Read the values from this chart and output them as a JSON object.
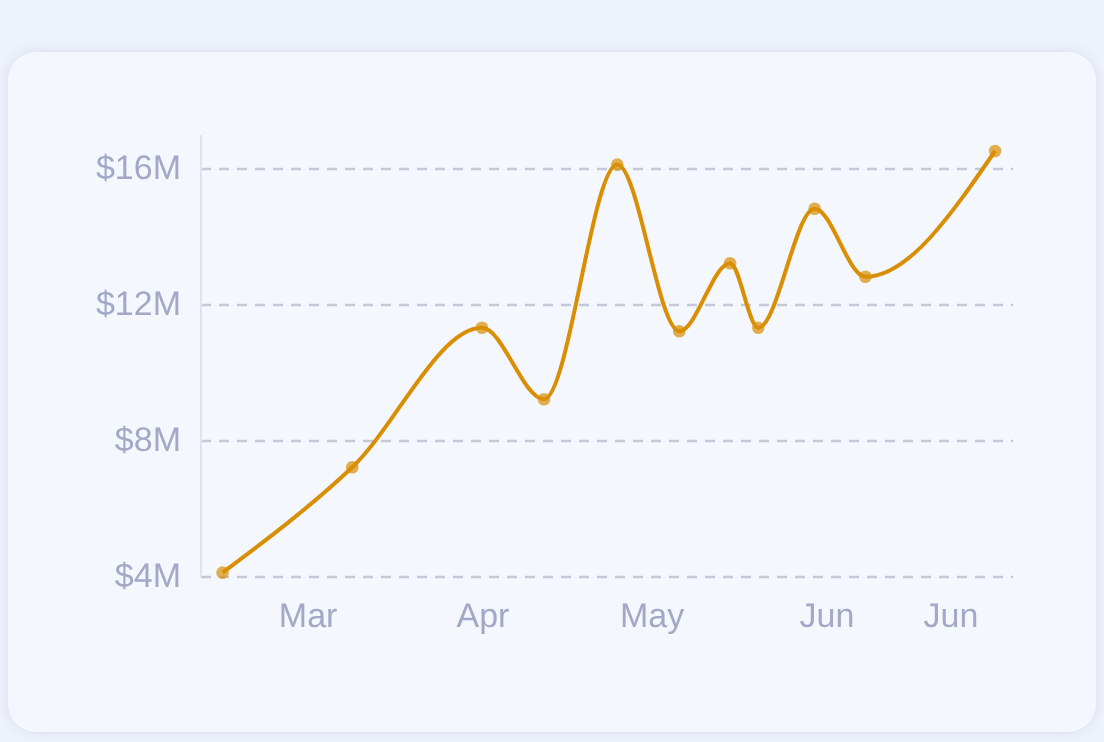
{
  "chart_data": {
    "type": "line",
    "x": [
      "--02-14",
      "--03-09",
      "--04-01",
      "--04-12",
      "--04-25",
      "--05-06",
      "--05-15",
      "--05-20",
      "--05-30",
      "--06-08",
      "--07-01"
    ],
    "series": [
      {
        "color": "#d98e04",
        "values": [
          4.1,
          7.2,
          11.3,
          9.2,
          16.1,
          11.2,
          13.2,
          11.3,
          14.8,
          12.8,
          16.5
        ]
      }
    ],
    "xlim": [
      "--02-10",
      "--07-04"
    ],
    "xticks": [
      {
        "value": "--03-01",
        "label": "Mar"
      },
      {
        "value": "--04-01",
        "label": "Apr"
      },
      {
        "value": "--05-01",
        "label": "May"
      },
      {
        "value": "--06-01",
        "label": "Jun"
      },
      {
        "value": "--06-23",
        "label": "Jun"
      }
    ],
    "ylim": [
      4,
      17
    ],
    "yticks": [
      {
        "value": 4,
        "label": "$4M"
      },
      {
        "value": 8,
        "label": "$8M"
      },
      {
        "value": 12,
        "label": "$12M"
      },
      {
        "value": 16,
        "label": "$16M"
      }
    ],
    "grid": "y",
    "marker": "circle",
    "line_style": "solid"
  }
}
